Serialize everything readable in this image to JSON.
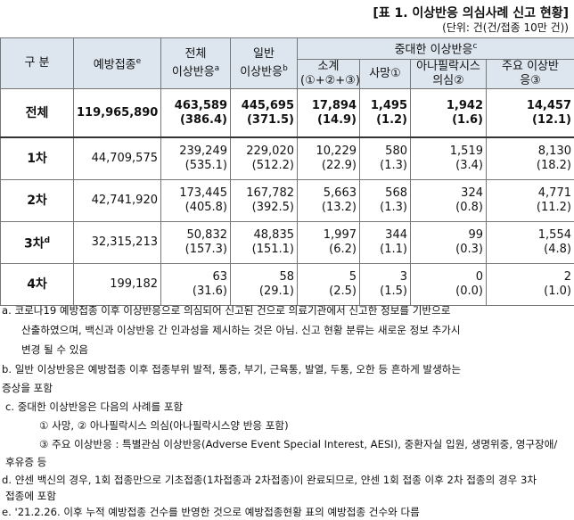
{
  "header": {
    "title": "[표 1. 이상반응 의심사례 신고 현황]",
    "unit": "(단위: 건(건/접종 10만 건))"
  },
  "table": {
    "columns": [
      {
        "label": "구 분"
      },
      {
        "label": "예방접종",
        "sup": "e"
      },
      {
        "label": "전체\n이상반응",
        "sup": "a"
      },
      {
        "label": "일반\n이상반응",
        "sup": "b"
      }
    ],
    "group": {
      "label": "중대한 이상반응",
      "sup": "c"
    },
    "subcolumns": [
      "소계\n(①+②+③)",
      "사망①",
      "아나필락시스\n의심②",
      "주요 이상반\n응③"
    ],
    "rows": [
      {
        "label": "전체",
        "vaccinations": "119,965,890",
        "cells": [
          [
            "463,589",
            "(386.4)"
          ],
          [
            "445,695",
            "(371.5)"
          ],
          [
            "17,894",
            "(14.9)"
          ],
          [
            "1,495",
            "(1.2)"
          ],
          [
            "1,942",
            "(1.6)"
          ],
          [
            "14,457",
            "(12.1)"
          ]
        ]
      },
      {
        "label": "1차",
        "vaccinations": "44,709,575",
        "cells": [
          [
            "239,249",
            "(535.1)"
          ],
          [
            "229,020",
            "(512.2)"
          ],
          [
            "10,229",
            "(22.9)"
          ],
          [
            "580",
            "(1.3)"
          ],
          [
            "1,519",
            "(3.4)"
          ],
          [
            "8,130",
            "(18.2)"
          ]
        ]
      },
      {
        "label": "2차",
        "vaccinations": "42,741,920",
        "cells": [
          [
            "173,445",
            "(405.8)"
          ],
          [
            "167,782",
            "(392.5)"
          ],
          [
            "5,663",
            "(13.2)"
          ],
          [
            "568",
            "(1.3)"
          ],
          [
            "324",
            "(0.8)"
          ],
          [
            "4,771",
            "(11.2)"
          ]
        ]
      },
      {
        "label": "3차",
        "sup": "d",
        "vaccinations": "32,315,213",
        "cells": [
          [
            "50,832",
            "(157.3)"
          ],
          [
            "48,835",
            "(151.1)"
          ],
          [
            "1,997",
            "(6.2)"
          ],
          [
            "344",
            "(1.1)"
          ],
          [
            "99",
            "(0.3)"
          ],
          [
            "1,554",
            "(4.8)"
          ]
        ]
      },
      {
        "label": "4차",
        "vaccinations": "199,182",
        "cells": [
          [
            "63",
            "(31.6)"
          ],
          [
            "58",
            "(29.1)"
          ],
          [
            "5",
            "(2.5)"
          ],
          [
            "3",
            "(1.5)"
          ],
          [
            "0",
            "(0.0)"
          ],
          [
            "2",
            "(1.0)"
          ]
        ]
      }
    ]
  },
  "footnotes": [
    "a. 코로나19 예방접종 이후 이상반응으로 의심되어 신고된 건으로 의료기관에서 신고한 정보를 기반으로",
    "산출하였으며, 백신과 이상반응 간 인과성을 제시하는 것은 아님. 신고 현황 분류는 새로운 정보 추가시",
    "변경 될 수 있음",
    "b. 일반 이상반응은 예방접종 이후 접종부위 발적, 통증, 부기, 근육통, 발열, 두통, 오한 등 흔하게 발생하는",
    "증상을 포함",
    "c. 중대한 이상반응은 다음의 사례를 포함",
    "① 사망, ② 아나필락시스 의심(아나필락시스양 반응 포함)",
    "③ 주요 이상반응 : 특별관심 이상반응(Adverse Event Special Interest, AESI), 중환자실 입원, 생명위중, 영구장애/",
    "후유증 등",
    "d. 얀센 백신의 경우, 1회 접종만으로 기초접종(1차접종과 2차접종)이 완료되므로, 얀센 1회 접종 이후 2차 접종의 경우 3차",
    "접종에 포함",
    "e. '21.2.26. 이후 누적 예방접종 건수를 반영한 것으로 예방접종현황 표의 예방접종 건수와 다름"
  ]
}
